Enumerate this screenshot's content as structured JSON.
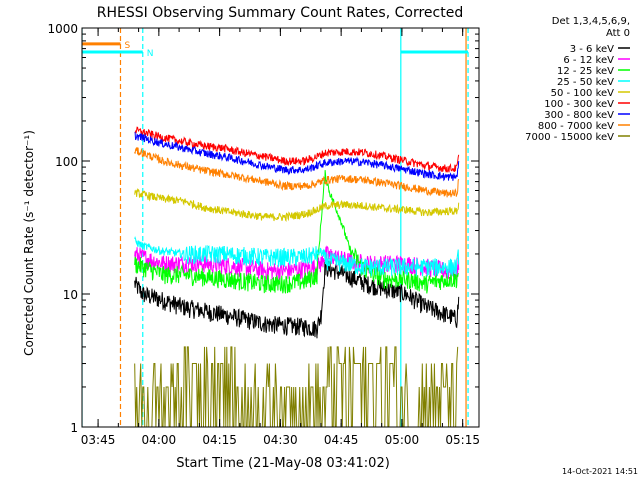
{
  "chart_data": {
    "type": "line",
    "title": "RHESSI Observing Summary Count Rates, Corrected",
    "xlabel": "Start Time (21-May-08 03:41:02)",
    "ylabel": "Corrected Count Rate (s⁻¹ detector⁻¹)",
    "y_scale": "log",
    "ylim": [
      1,
      1000
    ],
    "xlim_minutes": [
      0,
      98
    ],
    "x_ticks": [
      {
        "label": "03:45",
        "value": 3.97
      },
      {
        "label": "04:00",
        "value": 18.97
      },
      {
        "label": "04:15",
        "value": 33.97
      },
      {
        "label": "04:30",
        "value": 48.97
      },
      {
        "label": "04:45",
        "value": 63.97
      },
      {
        "label": "05:00",
        "value": 78.97
      },
      {
        "label": "05:15",
        "value": 93.97
      }
    ],
    "y_ticks": [
      {
        "label": "1",
        "value": 1
      },
      {
        "label": "10",
        "value": 10
      },
      {
        "label": "100",
        "value": 100
      },
      {
        "label": "1000",
        "value": 1000
      }
    ],
    "legend": {
      "header": [
        "Det 1,3,4,5,6,9,",
        "Att 0"
      ],
      "position": "right"
    },
    "series": [
      {
        "name": "3 - 6 keV",
        "color": "#000000",
        "points": [
          [
            13,
            12
          ],
          [
            15,
            10
          ],
          [
            20,
            9
          ],
          [
            25,
            8
          ],
          [
            30,
            7.5
          ],
          [
            35,
            7
          ],
          [
            40,
            6.5
          ],
          [
            45,
            6
          ],
          [
            50,
            5.8
          ],
          [
            55,
            5.7
          ],
          [
            58,
            5.5
          ],
          [
            59,
            7
          ],
          [
            60,
            16
          ],
          [
            65,
            14
          ],
          [
            70,
            12
          ],
          [
            75,
            11
          ],
          [
            80,
            10
          ],
          [
            85,
            8
          ],
          [
            90,
            7
          ],
          [
            92.5,
            6.5
          ],
          [
            93,
            9
          ]
        ]
      },
      {
        "name": "6 - 12 keV",
        "color": "#ff00ff",
        "points": [
          [
            13,
            20
          ],
          [
            15,
            19
          ],
          [
            20,
            17
          ],
          [
            25,
            17
          ],
          [
            30,
            17
          ],
          [
            35,
            16.5
          ],
          [
            40,
            16
          ],
          [
            45,
            15
          ],
          [
            50,
            15
          ],
          [
            55,
            15.5
          ],
          [
            58,
            16
          ],
          [
            59,
            17
          ],
          [
            60,
            20
          ],
          [
            65,
            18
          ],
          [
            70,
            17
          ],
          [
            75,
            17
          ],
          [
            80,
            17
          ],
          [
            85,
            16
          ],
          [
            90,
            15
          ],
          [
            92.5,
            15
          ],
          [
            93,
            17
          ]
        ]
      },
      {
        "name": "12 - 25 keV",
        "color": "#00ff00",
        "points": [
          [
            13,
            17
          ],
          [
            15,
            16
          ],
          [
            20,
            14
          ],
          [
            25,
            14
          ],
          [
            30,
            13.5
          ],
          [
            35,
            13
          ],
          [
            40,
            12.5
          ],
          [
            45,
            12
          ],
          [
            50,
            12
          ],
          [
            55,
            12.5
          ],
          [
            58,
            14
          ],
          [
            59,
            35
          ],
          [
            60,
            80
          ],
          [
            61,
            60
          ],
          [
            62,
            50
          ],
          [
            63,
            42
          ],
          [
            64,
            35
          ],
          [
            65,
            28
          ],
          [
            66,
            22
          ],
          [
            68,
            18
          ],
          [
            70,
            15
          ],
          [
            75,
            13
          ],
          [
            80,
            13
          ],
          [
            85,
            12
          ],
          [
            90,
            13
          ],
          [
            92.5,
            13
          ],
          [
            93,
            15
          ]
        ]
      },
      {
        "name": "25 - 50 keV",
        "color": "#00ffff",
        "points": [
          [
            13,
            25
          ],
          [
            15,
            23
          ],
          [
            20,
            21
          ],
          [
            25,
            20
          ],
          [
            30,
            20
          ],
          [
            35,
            20
          ],
          [
            40,
            19.5
          ],
          [
            45,
            19
          ],
          [
            50,
            19
          ],
          [
            55,
            19
          ],
          [
            58,
            20
          ],
          [
            59,
            21
          ],
          [
            60,
            18
          ],
          [
            65,
            17
          ],
          [
            70,
            16
          ],
          [
            75,
            16
          ],
          [
            80,
            16
          ],
          [
            85,
            16
          ],
          [
            90,
            16
          ],
          [
            92.5,
            16
          ],
          [
            93,
            20
          ]
        ]
      },
      {
        "name": "50 - 100 keV",
        "color": "#d4c800",
        "points": [
          [
            13,
            58
          ],
          [
            15,
            56
          ],
          [
            20,
            52
          ],
          [
            25,
            50
          ],
          [
            30,
            45
          ],
          [
            35,
            42
          ],
          [
            40,
            40
          ],
          [
            45,
            38
          ],
          [
            50,
            38
          ],
          [
            55,
            40
          ],
          [
            58,
            43
          ],
          [
            60,
            46
          ],
          [
            65,
            47
          ],
          [
            70,
            46
          ],
          [
            75,
            44
          ],
          [
            80,
            43
          ],
          [
            85,
            41
          ],
          [
            90,
            42
          ],
          [
            92.5,
            42
          ],
          [
            93,
            47
          ]
        ]
      },
      {
        "name": "100 - 300 keV",
        "color": "#ff0000",
        "points": [
          [
            13,
            170
          ],
          [
            15,
            165
          ],
          [
            20,
            150
          ],
          [
            25,
            140
          ],
          [
            30,
            130
          ],
          [
            35,
            125
          ],
          [
            40,
            115
          ],
          [
            45,
            108
          ],
          [
            50,
            100
          ],
          [
            55,
            100
          ],
          [
            58,
            108
          ],
          [
            60,
            115
          ],
          [
            65,
            118
          ],
          [
            70,
            116
          ],
          [
            75,
            108
          ],
          [
            80,
            100
          ],
          [
            85,
            92
          ],
          [
            90,
            88
          ],
          [
            92.5,
            88
          ],
          [
            93,
            110
          ]
        ]
      },
      {
        "name": "300 - 800 keV",
        "color": "#0000ff",
        "points": [
          [
            13,
            155
          ],
          [
            15,
            150
          ],
          [
            20,
            135
          ],
          [
            25,
            125
          ],
          [
            30,
            115
          ],
          [
            35,
            108
          ],
          [
            40,
            100
          ],
          [
            45,
            92
          ],
          [
            50,
            86
          ],
          [
            55,
            86
          ],
          [
            58,
            92
          ],
          [
            60,
            97
          ],
          [
            65,
            100
          ],
          [
            70,
            98
          ],
          [
            75,
            92
          ],
          [
            80,
            86
          ],
          [
            85,
            80
          ],
          [
            90,
            76
          ],
          [
            92.5,
            76
          ],
          [
            93,
            95
          ]
        ]
      },
      {
        "name": "800 - 7000 keV",
        "color": "#ff8000",
        "points": [
          [
            13,
            120
          ],
          [
            15,
            115
          ],
          [
            20,
            100
          ],
          [
            25,
            92
          ],
          [
            30,
            85
          ],
          [
            35,
            80
          ],
          [
            40,
            75
          ],
          [
            45,
            70
          ],
          [
            50,
            65
          ],
          [
            55,
            65
          ],
          [
            58,
            68
          ],
          [
            60,
            72
          ],
          [
            65,
            74
          ],
          [
            70,
            72
          ],
          [
            75,
            68
          ],
          [
            80,
            64
          ],
          [
            85,
            60
          ],
          [
            90,
            57
          ],
          [
            92.5,
            57
          ],
          [
            93,
            72
          ]
        ]
      },
      {
        "name": "7000 - 15000 keV",
        "color": "#808000",
        "points": [
          [
            13,
            1.9
          ],
          [
            20,
            2
          ],
          [
            27,
            2.5
          ],
          [
            35,
            2.8
          ],
          [
            40,
            2.2
          ],
          [
            45,
            1.8
          ],
          [
            50,
            1.6
          ],
          [
            55,
            1.6
          ],
          [
            60,
            2.4
          ],
          [
            65,
            2.7
          ],
          [
            70,
            2.7
          ],
          [
            75,
            2.7
          ],
          [
            80,
            2.2
          ],
          [
            85,
            2
          ],
          [
            90,
            2
          ],
          [
            92.5,
            2
          ],
          [
            93,
            3
          ]
        ]
      }
    ],
    "flags": [
      {
        "label": "S",
        "color": "#ff8000",
        "x_start": 0,
        "x_end": 9.5,
        "y": 760
      },
      {
        "label": "N",
        "color": "#00ffff",
        "x_start": 0,
        "x_end": 15,
        "y": 660
      }
    ],
    "vertical_markers": [
      {
        "color": "#00ffff",
        "style": "solid",
        "x": 0
      },
      {
        "color": "#ff8000",
        "style": "dashed",
        "x": 9.5
      },
      {
        "color": "#00ffff",
        "style": "dashed",
        "x": 15
      },
      {
        "color": "#00ffff",
        "style": "solid",
        "x": 78.7
      },
      {
        "color": "#ff8000",
        "style": "solid",
        "x": 94.8
      },
      {
        "color": "#00ffff",
        "style": "dashed",
        "x": 95.3
      }
    ],
    "segments": [
      {
        "color": "#00ffff",
        "x_start": 78.7,
        "x_end": 95.3,
        "y": 660
      }
    ],
    "footer_timestamp": "14-Oct-2021 14:51"
  }
}
